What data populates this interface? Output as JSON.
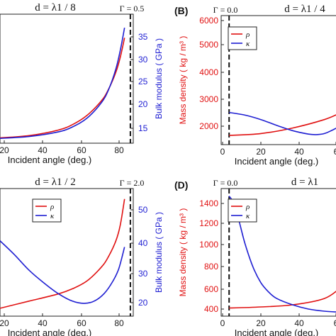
{
  "figure": {
    "panel_labels": [
      "(B)",
      "(D)"
    ]
  },
  "chart_data": [
    {
      "type": "line",
      "title": "d = λ1 / 8",
      "gamma_label": "Γ = 0.5",
      "xlabel": "Incident angle (deg.)",
      "ylabel": "",
      "ylabel_right": "Bulk modulus ( GPa )",
      "xlim": [
        0,
        92
      ],
      "x_ticks": [
        "20",
        "40",
        "60",
        "80"
      ],
      "ylim_right": [
        12,
        38
      ],
      "y_right_ticks": [
        "15",
        "20",
        "25",
        "30",
        "35"
      ],
      "gamma_x": 90,
      "series": [
        {
          "axis": "left",
          "color": "#e01010",
          "x": [
            0,
            20,
            40,
            50,
            60,
            70,
            75,
            80,
            83,
            86
          ],
          "y": [
            12.9,
            13.4,
            14.6,
            15.8,
            17.8,
            21.0,
            23.6,
            27.3,
            30.5,
            34.8
          ]
        },
        {
          "axis": "right",
          "color": "#1e1ed2",
          "x": [
            0,
            20,
            40,
            50,
            60,
            70,
            75,
            80,
            83,
            86
          ],
          "y": [
            12.8,
            13.2,
            14.2,
            15.3,
            17.2,
            20.6,
            23.5,
            28.0,
            32.0,
            37.0
          ]
        }
      ]
    },
    {
      "type": "line",
      "title": "d = λ1 / 4",
      "gamma_label": "Γ = 0.0",
      "xlabel": "Incident angle (deg.)",
      "ylabel": "Mass density ( kg / m³ )",
      "xlim": [
        -5,
        70
      ],
      "x_ticks": [
        "0",
        "20",
        "40",
        "6"
      ],
      "ylim": [
        1500,
        6000
      ],
      "y_ticks": [
        "2000",
        "3000",
        "4000",
        "5000",
        "6000"
      ],
      "gamma_x": 0,
      "legend": [
        "ρ",
        "κ"
      ],
      "series": [
        {
          "name": "ρ",
          "axis": "left",
          "color": "#e01010",
          "x": [
            0,
            20,
            40,
            60,
            70
          ],
          "y": [
            1650,
            1720,
            1930,
            2250,
            2500
          ]
        },
        {
          "name": "κ",
          "axis": "right",
          "color": "#1e1ed2",
          "x": [
            0,
            10,
            20,
            30,
            40,
            50,
            55,
            60,
            65,
            70
          ],
          "y": [
            2520,
            2420,
            2250,
            2030,
            1830,
            1700,
            1680,
            1720,
            1850,
            2000
          ]
        }
      ]
    },
    {
      "type": "line",
      "title": "d = λ1 / 2",
      "gamma_label": "Γ = 2.0",
      "xlabel": "Incident angle (deg.)",
      "ylabel": "",
      "ylabel_right": "Bulk modulus ( GPa )",
      "xlim": [
        0,
        92
      ],
      "x_ticks": [
        "20",
        "40",
        "60",
        "80"
      ],
      "ylim_right": [
        18,
        55
      ],
      "y_right_ticks": [
        "20",
        "30",
        "40",
        "50"
      ],
      "gamma_x": 90,
      "legend": [
        "ρ",
        "κ"
      ],
      "series": [
        {
          "name": "ρ",
          "axis": "left",
          "color": "#e01010",
          "x": [
            0,
            20,
            40,
            50,
            60,
            70,
            75,
            80,
            83,
            86
          ],
          "y": [
            18.2,
            20.5,
            22.8,
            24.5,
            27.0,
            31.5,
            35.0,
            40.0,
            45.0,
            53.5
          ]
        },
        {
          "name": "κ",
          "axis": "right",
          "color": "#1e1ed2",
          "x": [
            0,
            10,
            20,
            30,
            40,
            50,
            58,
            65,
            72,
            78,
            82,
            86
          ],
          "y": [
            40,
            35.5,
            30.5,
            26.5,
            23.0,
            20.5,
            19.8,
            20.5,
            23.0,
            27.0,
            31.0,
            38.0
          ]
        }
      ]
    },
    {
      "type": "line",
      "title": "d = λ1",
      "gamma_label": "Γ = 0.0",
      "xlabel": "Incident angle (deg.)",
      "ylabel": "Mass density ( kg / m³ )",
      "xlim": [
        -5,
        70
      ],
      "x_ticks": [
        "0",
        "20",
        "40",
        "6"
      ],
      "ylim": [
        370,
        1500
      ],
      "y_ticks": [
        "400",
        "600",
        "800",
        "1000",
        "1200",
        "1400"
      ],
      "gamma_x": 0,
      "legend": [
        "ρ",
        "κ"
      ],
      "series": [
        {
          "name": "ρ",
          "axis": "left",
          "color": "#e01010",
          "x": [
            0,
            20,
            40,
            60,
            70
          ],
          "y": [
            410,
            420,
            440,
            500,
            600
          ]
        },
        {
          "name": "κ",
          "axis": "right",
          "color": "#1e1ed2",
          "x": [
            0,
            3,
            6,
            10,
            15,
            20,
            25,
            30,
            40,
            50,
            60,
            70
          ],
          "y": [
            1470,
            1400,
            1250,
            1020,
            800,
            650,
            560,
            500,
            440,
            400,
            380,
            370
          ]
        }
      ]
    }
  ]
}
